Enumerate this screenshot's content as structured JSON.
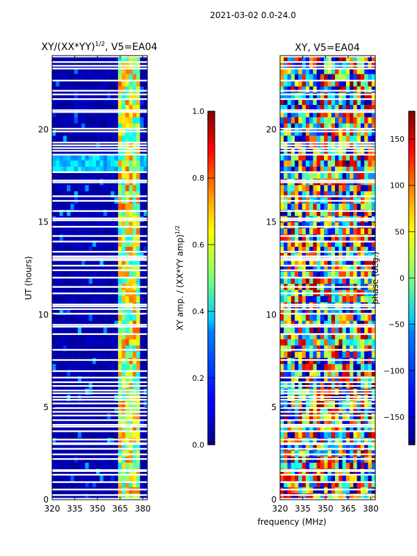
{
  "suptitle": "2021-03-02 0.0-24.0",
  "colors": {
    "background": "#00007f",
    "gap": "#ffffff",
    "frame": "#000000"
  },
  "chart_data": [
    {
      "id": "amp",
      "type": "heatmap",
      "title": "XY/(XX*YY)",
      "title_sup": "1/2",
      "title_tail": ", V5=EA04",
      "xlabel": "",
      "ylabel": "UT (hours)",
      "xlim": [
        320,
        383
      ],
      "ylim": [
        0,
        24
      ],
      "xticks": [
        320,
        335,
        350,
        365,
        380
      ],
      "yticks": [
        0,
        5,
        10,
        15,
        20
      ],
      "colorbar": {
        "label": "XY amp. / (XX*YY amp)",
        "label_sup": "1/2",
        "range": [
          0.0,
          1.0
        ],
        "ticks": [
          "0.0",
          "0.2",
          "0.4",
          "0.6",
          "0.8",
          "1.0"
        ],
        "colormap": "jet"
      },
      "value_description": "mostly near 0 (dark blue) except a brighter band around 363-378 MHz with values 0.3-0.8"
    },
    {
      "id": "phase",
      "type": "heatmap",
      "title": "XY, V5=EA04",
      "xlabel": "frequency (MHz)",
      "ylabel": "",
      "xlim": [
        320,
        383
      ],
      "ylim": [
        0,
        24
      ],
      "xticks": [
        320,
        335,
        350,
        365,
        380
      ],
      "yticks": [
        0,
        5,
        10,
        15,
        20
      ],
      "colorbar": {
        "label": "phase (deg.)",
        "range": [
          -180,
          180
        ],
        "ticks": [
          "−150",
          "−100",
          "−50",
          "0",
          "50",
          "100",
          "150"
        ],
        "tick_values": [
          -150,
          -100,
          -50,
          0,
          50,
          100,
          150
        ],
        "colormap": "jet"
      },
      "value_description": "phase values spanning -180 to 180 deg, horizontally banded by time"
    }
  ],
  "gap_hours": [
    0.05,
    0.25,
    0.55,
    0.95,
    1.35,
    1.55,
    1.6,
    2.2,
    2.45,
    2.75,
    3.0,
    3.05,
    3.25,
    3.7,
    3.95,
    4.05,
    4.3,
    4.55,
    4.75,
    4.95,
    5.2,
    5.4,
    5.55,
    5.75,
    5.9,
    6.15,
    6.35,
    6.6,
    6.95,
    7.55,
    8.1,
    8.95,
    9.35,
    9.45,
    10.05,
    10.3,
    10.45,
    10.55,
    11.15,
    11.5,
    12.0,
    12.4,
    12.65,
    12.95,
    13.05,
    13.15,
    13.4,
    13.95,
    14.25,
    14.75,
    15.1,
    15.2,
    15.6,
    16.15,
    16.4,
    17.15,
    17.25,
    17.7,
    18.65,
    18.85,
    19.0,
    19.15,
    19.3,
    19.9,
    20.05,
    20.95,
    21.05,
    21.65,
    21.9,
    22.1,
    22.65,
    23.3,
    23.45,
    23.65,
    23.95
  ]
}
